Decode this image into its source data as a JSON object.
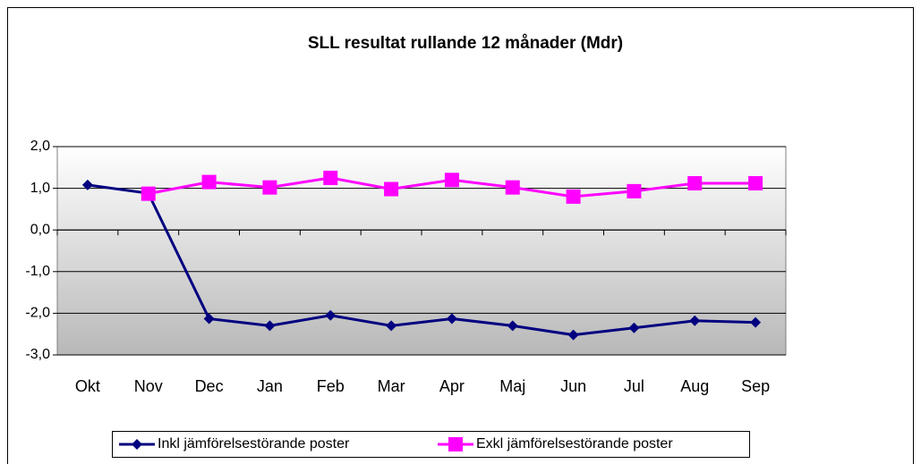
{
  "chart_data": {
    "type": "line",
    "title": "SLL resultat rullande 12 månader (Mdr)",
    "categories": [
      "Okt",
      "Nov",
      "Dec",
      "Jan",
      "Feb",
      "Mar",
      "Apr",
      "Maj",
      "Jun",
      "Jul",
      "Aug",
      "Sep"
    ],
    "series": [
      {
        "name": "Inkl jämförelsestörande poster",
        "color": "#000080",
        "marker": "diamond",
        "values": [
          1.08,
          0.88,
          -2.13,
          -2.3,
          -2.05,
          -2.3,
          -2.13,
          -2.3,
          -2.52,
          -2.35,
          -2.18,
          -2.22
        ]
      },
      {
        "name": "Exkl jämförelsestörande poster",
        "color": "#ff00ff",
        "marker": "square",
        "values": [
          null,
          0.87,
          1.15,
          1.02,
          1.25,
          0.98,
          1.2,
          1.02,
          0.8,
          0.93,
          1.12,
          1.12
        ]
      }
    ],
    "ylim": [
      -3,
      2
    ],
    "yticks": [
      {
        "value": 2,
        "label": "2,0"
      },
      {
        "value": 1,
        "label": "1,0"
      },
      {
        "value": 0,
        "label": "0,0"
      },
      {
        "value": -1,
        "label": "-1,0"
      },
      {
        "value": -2,
        "label": "-2,0"
      },
      {
        "value": -3,
        "label": "-3,0"
      }
    ],
    "grid": true,
    "legend": "bottom"
  }
}
